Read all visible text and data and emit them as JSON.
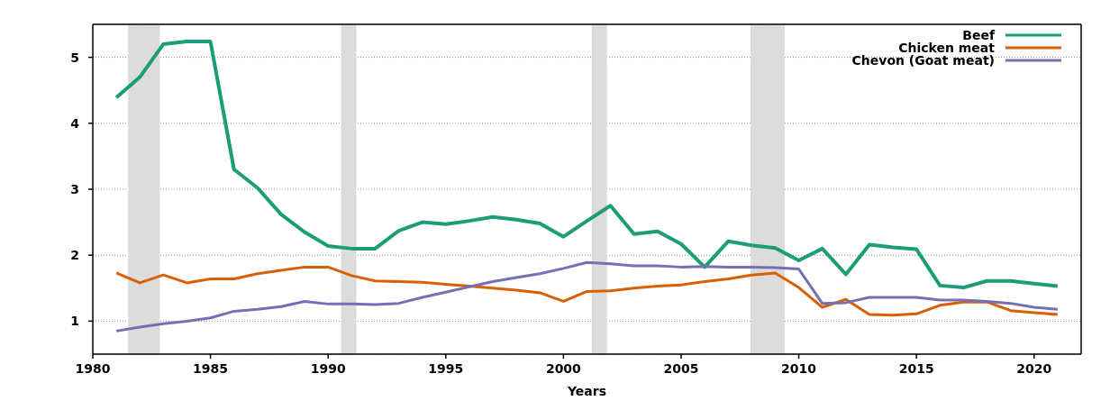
{
  "chart_data": {
    "type": "line",
    "xlabel": "Years",
    "x": [
      1981,
      1982,
      1983,
      1984,
      1985,
      1986,
      1987,
      1988,
      1989,
      1990,
      1991,
      1992,
      1993,
      1994,
      1995,
      1996,
      1997,
      1998,
      1999,
      2000,
      2001,
      2002,
      2003,
      2004,
      2005,
      2006,
      2007,
      2008,
      2009,
      2010,
      2011,
      2012,
      2013,
      2014,
      2015,
      2016,
      2017,
      2018,
      2019,
      2020,
      2021
    ],
    "series": [
      {
        "name": "Beef",
        "color": "#1b9e77",
        "values": [
          4.39,
          4.7,
          5.2,
          5.24,
          5.24,
          3.3,
          3.02,
          2.62,
          2.35,
          2.14,
          2.1,
          2.1,
          2.37,
          2.5,
          2.47,
          2.52,
          2.58,
          2.54,
          2.48,
          2.28,
          2.52,
          2.75,
          2.32,
          2.36,
          2.17,
          1.82,
          2.21,
          2.15,
          2.11,
          1.92,
          2.1,
          1.71,
          2.16,
          2.12,
          2.09,
          1.54,
          1.51,
          1.61,
          1.61,
          1.57,
          1.53
        ]
      },
      {
        "name": "Chicken meat",
        "color": "#d95f02",
        "values": [
          1.73,
          1.58,
          1.7,
          1.58,
          1.64,
          1.64,
          1.72,
          1.77,
          1.82,
          1.82,
          1.69,
          1.61,
          1.6,
          1.59,
          1.56,
          1.53,
          1.5,
          1.47,
          1.43,
          1.3,
          1.45,
          1.46,
          1.5,
          1.53,
          1.55,
          1.6,
          1.64,
          1.7,
          1.73,
          1.51,
          1.21,
          1.33,
          1.1,
          1.09,
          1.11,
          1.24,
          1.29,
          1.29,
          1.16,
          1.13,
          1.1
        ]
      },
      {
        "name": "Chevon (Goat meat)",
        "color": "#7570b3",
        "values": [
          0.85,
          0.91,
          0.96,
          1.0,
          1.05,
          1.15,
          1.18,
          1.22,
          1.3,
          1.26,
          1.26,
          1.25,
          1.27,
          1.36,
          1.44,
          1.52,
          1.6,
          1.66,
          1.72,
          1.8,
          1.89,
          1.87,
          1.84,
          1.84,
          1.82,
          1.83,
          1.82,
          1.82,
          1.81,
          1.79,
          1.27,
          1.28,
          1.36,
          1.36,
          1.36,
          1.32,
          1.32,
          1.3,
          1.27,
          1.21,
          1.18
        ]
      }
    ],
    "xlim": [
      1980,
      2022
    ],
    "xticks": [
      1980,
      1985,
      1990,
      1995,
      2000,
      2005,
      2010,
      2015,
      2020
    ],
    "ylim": [
      0.5,
      5.5
    ],
    "yticks": [
      1,
      2,
      3,
      4,
      5
    ],
    "bands": [
      {
        "axis": "x",
        "from": 1981.5,
        "to": 1982.85,
        "color": "#dcdcdc"
      },
      {
        "axis": "x",
        "from": 1990.55,
        "to": 1991.2,
        "color": "#dcdcdc"
      },
      {
        "axis": "x",
        "from": 2001.2,
        "to": 2001.85,
        "color": "#dcdcdc"
      },
      {
        "axis": "x",
        "from": 2007.95,
        "to": 2009.4,
        "color": "#dcdcdc"
      }
    ],
    "grid": "y",
    "legend": "top right",
    "marker": "none",
    "line_style": "solid"
  }
}
